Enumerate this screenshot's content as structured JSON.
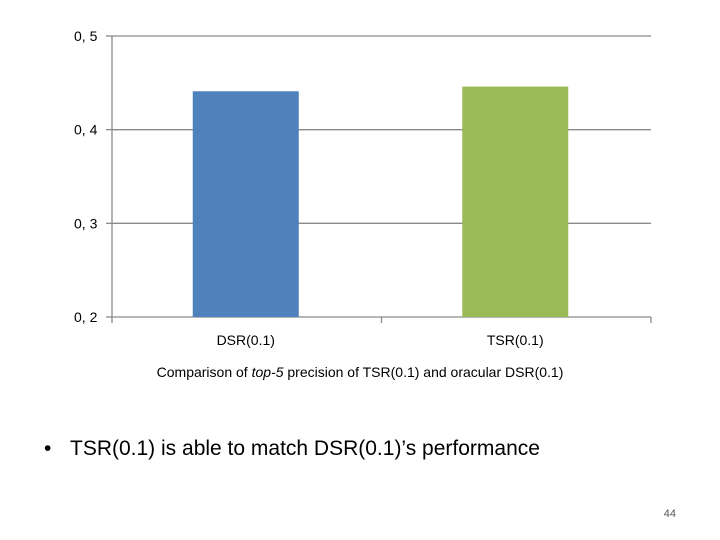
{
  "chart_data": {
    "type": "bar",
    "categories": [
      "DSR(0.1)",
      "TSR(0.1)"
    ],
    "values": [
      0.441,
      0.446
    ],
    "colors": [
      "#4f81bd",
      "#9bbb59"
    ],
    "ylim": [
      0.2,
      0.5
    ],
    "yticks": [
      0.2,
      0.3,
      0.4,
      0.5
    ],
    "ytick_labels": [
      "0, 2",
      "0, 3",
      "0, 4",
      "0, 5"
    ],
    "grid": true,
    "legend": "none",
    "title": "",
    "xlabel": "",
    "ylabel": ""
  },
  "caption": {
    "prefix": "Comparison of ",
    "emphasis": "top-5",
    "suffix": " precision of TSR(0.1) and  oracular DSR(0.1)"
  },
  "bullet": {
    "symbol": "•",
    "text": "TSR(0.1) is able to match DSR(0.1)’s performance"
  },
  "page_number": "44"
}
